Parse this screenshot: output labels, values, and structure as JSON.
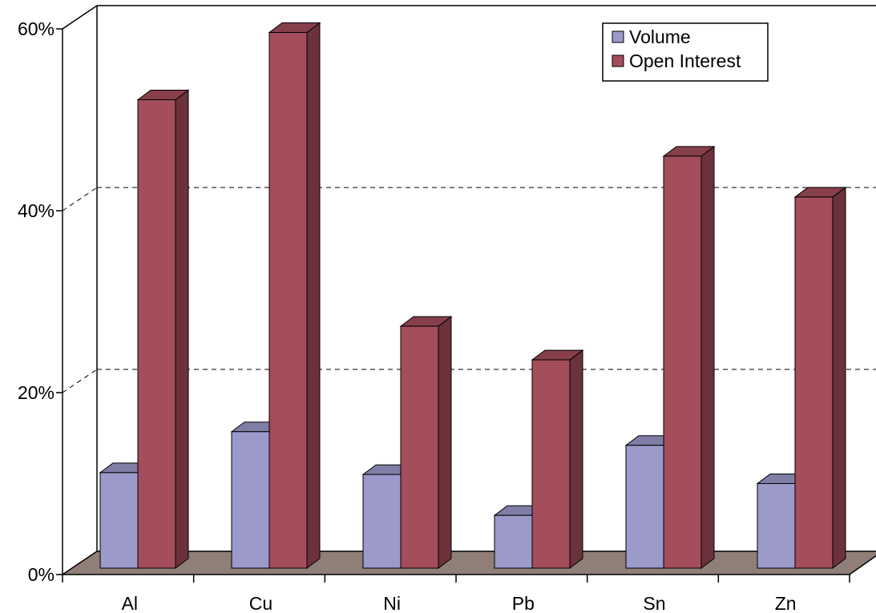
{
  "chart_data": {
    "type": "bar",
    "categories": [
      "Al",
      "Cu",
      "Ni",
      "Pb",
      "Sn",
      "Zn"
    ],
    "series": [
      {
        "name": "Volume",
        "values": [
          10.5,
          15,
          10.3,
          5.8,
          13.5,
          9.3
        ],
        "color": "#9c99cb"
      },
      {
        "name": "Open Interest",
        "values": [
          51.5,
          58.9,
          26.6,
          22.9,
          45.3,
          40.8
        ],
        "color": "#a44d5b"
      }
    ],
    "ylim": [
      0,
      60
    ],
    "yticks": [
      0,
      20,
      40,
      60
    ],
    "ytick_labels": [
      "0%",
      "20%",
      "40%",
      "60%"
    ],
    "grid": true,
    "legend_position": "top-right",
    "three_d": true,
    "floor_color": "#8f7f78"
  }
}
